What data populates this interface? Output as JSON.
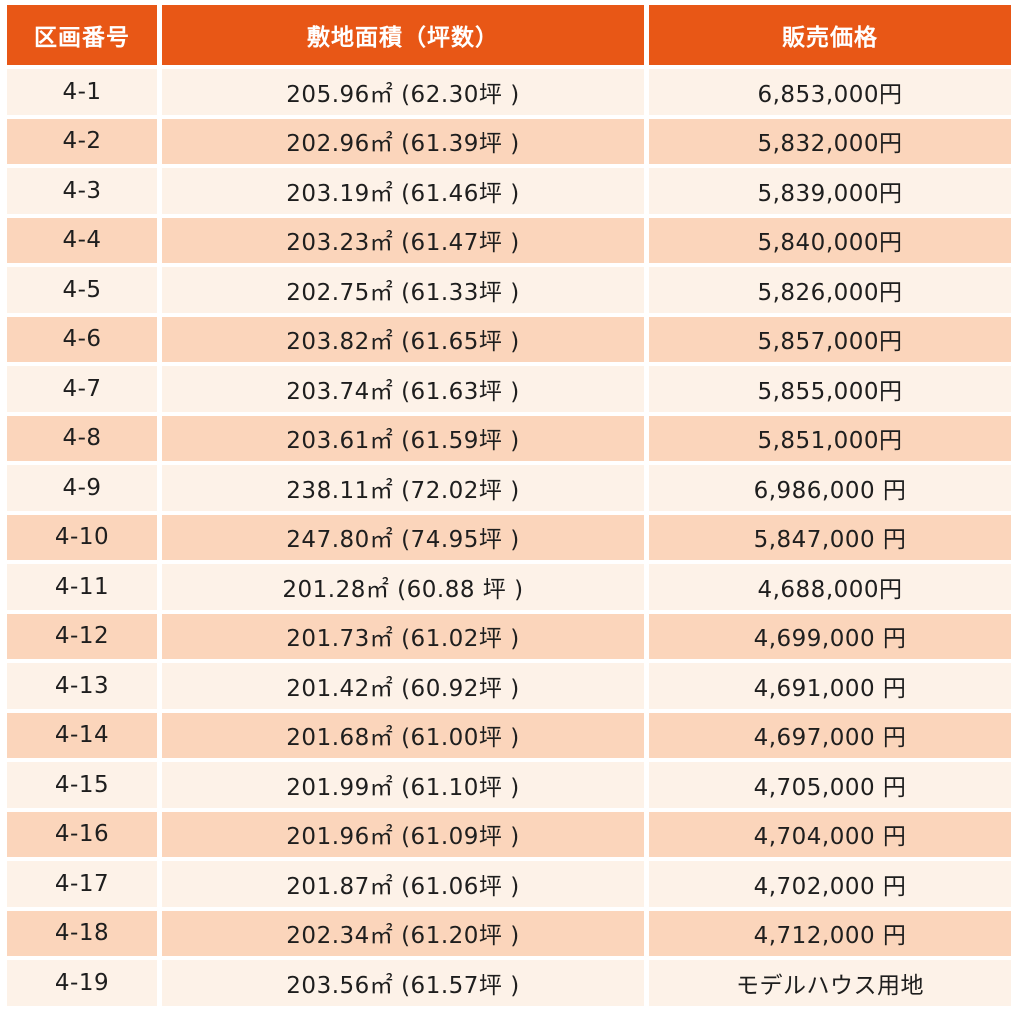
{
  "table": {
    "headers": [
      "区画番号",
      "敷地面積（坪数）",
      "販売価格"
    ],
    "rows": [
      {
        "lot": "4-1",
        "area": "205.96㎡ (62.30坪 )",
        "price": "6,853,000円"
      },
      {
        "lot": "4-2",
        "area": "202.96㎡ (61.39坪 )",
        "price": "5,832,000円"
      },
      {
        "lot": "4-3",
        "area": "203.19㎡ (61.46坪 )",
        "price": "5,839,000円"
      },
      {
        "lot": "4-4",
        "area": "203.23㎡ (61.47坪 )",
        "price": "5,840,000円"
      },
      {
        "lot": "4-5",
        "area": "202.75㎡ (61.33坪 )",
        "price": "5,826,000円"
      },
      {
        "lot": "4-6",
        "area": "203.82㎡ (61.65坪 )",
        "price": "5,857,000円"
      },
      {
        "lot": "4-7",
        "area": "203.74㎡ (61.63坪 )",
        "price": "5,855,000円"
      },
      {
        "lot": "4-8",
        "area": "203.61㎡ (61.59坪 )",
        "price": "5,851,000円"
      },
      {
        "lot": "4-9",
        "area": "238.11㎡ (72.02坪 )",
        "price": "6,986,000 円"
      },
      {
        "lot": "4-10",
        "area": "247.80㎡ (74.95坪 )",
        "price": "5,847,000 円"
      },
      {
        "lot": "4-11",
        "area": "201.28㎡ (60.88 坪 )",
        "price": "4,688,000円"
      },
      {
        "lot": "4-12",
        "area": "201.73㎡ (61.02坪 )",
        "price": "4,699,000 円"
      },
      {
        "lot": "4-13",
        "area": "201.42㎡ (60.92坪 )",
        "price": "4,691,000 円"
      },
      {
        "lot": "4-14",
        "area": "201.68㎡ (61.00坪 )",
        "price": "4,697,000 円"
      },
      {
        "lot": "4-15",
        "area": "201.99㎡ (61.10坪 )",
        "price": "4,705,000 円"
      },
      {
        "lot": "4-16",
        "area": "201.96㎡ (61.09坪 )",
        "price": "4,704,000 円"
      },
      {
        "lot": "4-17",
        "area": "201.87㎡ (61.06坪 )",
        "price": "4,702,000 円"
      },
      {
        "lot": "4-18",
        "area": "202.34㎡ (61.20坪 )",
        "price": "4,712,000 円"
      },
      {
        "lot": "4-19",
        "area": "203.56㎡ (61.57坪 )",
        "price": "モデルハウス用地"
      }
    ]
  },
  "colors": {
    "header_bg": "#e85716",
    "header_text": "#ffffff",
    "row_light": "#fdf2e8",
    "row_dark": "#fbd5bb"
  }
}
